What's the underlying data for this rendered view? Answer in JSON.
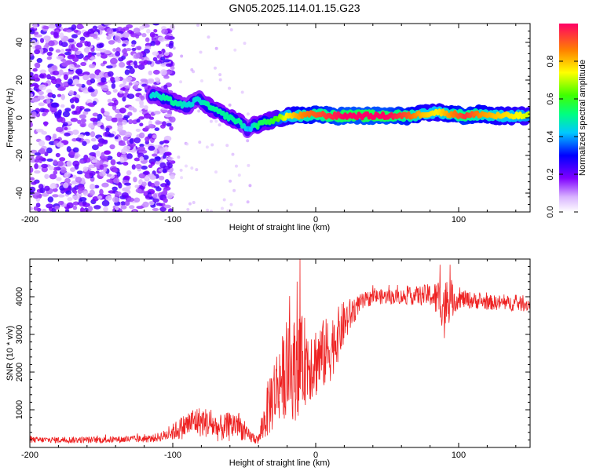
{
  "figure": {
    "title": "GN05.2025.114.01.15.G23"
  },
  "colors": {
    "snr_line": "#ee2222",
    "axis": "#000000",
    "background": "#ffffff"
  },
  "colorbar": {
    "label": "Normalized spectral amplitude",
    "ticks": [
      "0.0",
      "0.2",
      "0.4",
      "0.6",
      "0.8"
    ],
    "tick_values": [
      0.0,
      0.2,
      0.4,
      0.6,
      0.8
    ],
    "range": [
      0,
      1
    ]
  },
  "chart_data": [
    {
      "type": "heatmap",
      "title": "",
      "xlabel": "Height of straight line (km)",
      "ylabel": "Frequency (Hz)",
      "xlim": [
        -200,
        150
      ],
      "ylim": [
        -50,
        50
      ],
      "xticks": [
        -200,
        -100,
        0,
        100
      ],
      "xtick_labels": [
        "-200",
        "-100",
        "0",
        "100"
      ],
      "yticks": [
        -40,
        -20,
        0,
        20,
        40
      ],
      "ytick_labels": [
        "-40",
        "-20",
        "0",
        "20",
        "40"
      ],
      "noise_region": {
        "x_range": [
          -200,
          -100
        ],
        "amplitude_range": [
          0.05,
          0.25
        ]
      },
      "ridge": [
        {
          "x": -112,
          "y": 12,
          "amp": 0.45
        },
        {
          "x": -105,
          "y": 10,
          "amp": 0.5
        },
        {
          "x": -98,
          "y": 8,
          "amp": 0.5
        },
        {
          "x": -90,
          "y": 6,
          "amp": 0.45
        },
        {
          "x": -82,
          "y": 10,
          "amp": 0.45
        },
        {
          "x": -75,
          "y": 6,
          "amp": 0.5
        },
        {
          "x": -68,
          "y": 3,
          "amp": 0.5
        },
        {
          "x": -60,
          "y": 0,
          "amp": 0.5
        },
        {
          "x": -52,
          "y": -3,
          "amp": 0.5
        },
        {
          "x": -47,
          "y": -7,
          "amp": 0.4
        },
        {
          "x": -44,
          "y": -4,
          "amp": 0.45
        },
        {
          "x": -40,
          "y": -4,
          "amp": 0.55
        },
        {
          "x": -35,
          "y": -2,
          "amp": 0.55
        },
        {
          "x": -28,
          "y": -1,
          "amp": 0.6
        },
        {
          "x": -20,
          "y": 1,
          "amp": 0.75
        },
        {
          "x": -10,
          "y": 1,
          "amp": 0.85
        },
        {
          "x": 0,
          "y": 2,
          "amp": 0.9
        },
        {
          "x": 10,
          "y": 1,
          "amp": 0.95
        },
        {
          "x": 20,
          "y": 1,
          "amp": 1.0
        },
        {
          "x": 35,
          "y": 1,
          "amp": 1.0
        },
        {
          "x": 50,
          "y": 1,
          "amp": 1.0
        },
        {
          "x": 65,
          "y": 1,
          "amp": 0.9
        },
        {
          "x": 75,
          "y": 2,
          "amp": 0.8
        },
        {
          "x": 85,
          "y": 3,
          "amp": 0.75
        },
        {
          "x": 95,
          "y": 2,
          "amp": 0.85
        },
        {
          "x": 105,
          "y": 1,
          "amp": 0.95
        },
        {
          "x": 115,
          "y": 2,
          "amp": 0.85
        },
        {
          "x": 125,
          "y": 1,
          "amp": 0.8
        },
        {
          "x": 140,
          "y": 1,
          "amp": 0.75
        },
        {
          "x": 150,
          "y": 1,
          "amp": 0.7
        }
      ]
    },
    {
      "type": "line",
      "title": "",
      "xlabel": "Height of straight line (km)",
      "ylabel": "SNR (10 * v/v)",
      "xlim": [
        -200,
        150
      ],
      "ylim": [
        0,
        5000
      ],
      "xticks": [
        -200,
        -100,
        0,
        100
      ],
      "xtick_labels": [
        "-200",
        "-100",
        "0",
        "100"
      ],
      "yticks": [
        1000,
        2000,
        3000,
        4000
      ],
      "ytick_labels": [
        "1000",
        "2000",
        "3000",
        "4000"
      ],
      "envelope": [
        {
          "x": -200,
          "mean": 200,
          "spread": 80
        },
        {
          "x": -150,
          "mean": 200,
          "spread": 90
        },
        {
          "x": -115,
          "mean": 230,
          "spread": 100
        },
        {
          "x": -105,
          "mean": 320,
          "spread": 150
        },
        {
          "x": -95,
          "mean": 500,
          "spread": 300
        },
        {
          "x": -85,
          "mean": 700,
          "spread": 400
        },
        {
          "x": -75,
          "mean": 650,
          "spread": 400
        },
        {
          "x": -68,
          "mean": 500,
          "spread": 350
        },
        {
          "x": -60,
          "mean": 550,
          "spread": 400
        },
        {
          "x": -55,
          "mean": 650,
          "spread": 400
        },
        {
          "x": -48,
          "mean": 320,
          "spread": 200
        },
        {
          "x": -40,
          "mean": 200,
          "spread": 120
        },
        {
          "x": -32,
          "mean": 1200,
          "spread": 900
        },
        {
          "x": -25,
          "mean": 1800,
          "spread": 1100
        },
        {
          "x": -20,
          "mean": 2000,
          "spread": 1200
        },
        {
          "x": -14,
          "mean": 2100,
          "spread": 1400
        },
        {
          "x": -8,
          "mean": 2300,
          "spread": 1200
        },
        {
          "x": 0,
          "mean": 2300,
          "spread": 1000
        },
        {
          "x": 10,
          "mean": 2600,
          "spread": 900
        },
        {
          "x": 20,
          "mean": 3300,
          "spread": 600
        },
        {
          "x": 30,
          "mean": 3800,
          "spread": 250
        },
        {
          "x": 40,
          "mean": 4000,
          "spread": 200
        },
        {
          "x": 60,
          "mean": 4000,
          "spread": 200
        },
        {
          "x": 80,
          "mean": 4050,
          "spread": 300
        },
        {
          "x": 90,
          "mean": 3800,
          "spread": 700
        },
        {
          "x": 100,
          "mean": 3950,
          "spread": 250
        },
        {
          "x": 120,
          "mean": 3850,
          "spread": 200
        },
        {
          "x": 150,
          "mean": 3800,
          "spread": 200
        }
      ],
      "peaks": [
        {
          "x": -11,
          "y": 5000
        },
        {
          "x": -13,
          "y": 4400
        },
        {
          "x": 87,
          "y": 4850
        },
        {
          "x": 94,
          "y": 4850
        },
        {
          "x": 90,
          "y": 2900
        }
      ]
    }
  ]
}
